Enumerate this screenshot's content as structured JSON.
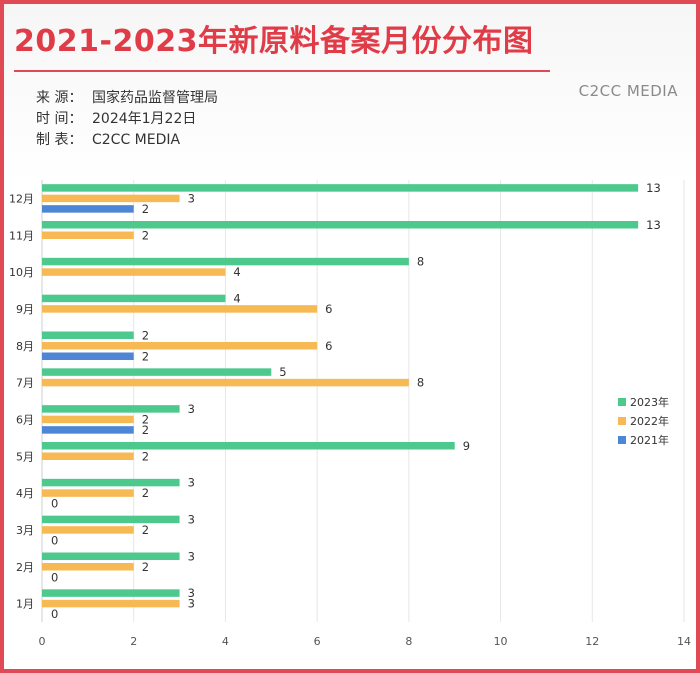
{
  "header": {
    "title": "2021-2023年新原料备案月份分布图",
    "brand": "C2CC MEDIA",
    "source_label": "来 源：",
    "source_value": "国家药品监督管理局",
    "time_label": "时 间：",
    "time_value": "2024年1月22日",
    "maker_label": "制 表：",
    "maker_value": "C2CC  MEDIA"
  },
  "chart_data": {
    "type": "bar",
    "orientation": "horizontal",
    "categories": [
      "12月",
      "11月",
      "10月",
      "9月",
      "8月",
      "7月",
      "6月",
      "5月",
      "4月",
      "3月",
      "2月",
      "1月"
    ],
    "series": [
      {
        "name": "2023年",
        "color": "#4dc98d",
        "values": [
          13,
          13,
          8,
          4,
          2,
          5,
          3,
          9,
          3,
          3,
          3,
          3
        ]
      },
      {
        "name": "2022年",
        "color": "#f7b954",
        "values": [
          3,
          2,
          4,
          6,
          6,
          8,
          2,
          2,
          2,
          2,
          2,
          3
        ]
      },
      {
        "name": "2021年",
        "color": "#4e86d6",
        "values": [
          2,
          null,
          null,
          null,
          2,
          null,
          2,
          null,
          0,
          0,
          0,
          0
        ]
      }
    ],
    "xlim": [
      0,
      14
    ],
    "xticks": [
      0,
      2,
      4,
      6,
      8,
      10,
      12,
      14
    ],
    "grid": true,
    "legend_position": "right"
  }
}
